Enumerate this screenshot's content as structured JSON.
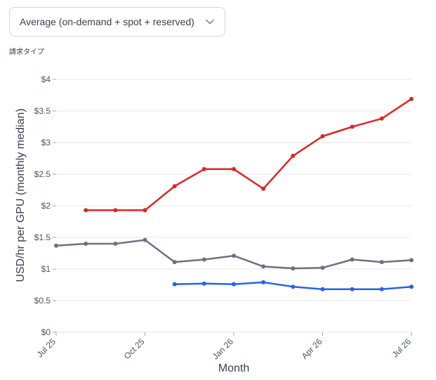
{
  "filter": {
    "selected_label": "Average (on-demand + spot + reserved)",
    "caption": "請求タイプ"
  },
  "chart_data": {
    "type": "line",
    "title": "",
    "xlabel": "Month",
    "ylabel": "USD/hr per GPU (monthly median)",
    "ylim": [
      0,
      4
    ],
    "yticks": [
      0,
      0.5,
      1,
      1.5,
      2,
      2.5,
      3,
      3.5,
      4
    ],
    "ytick_labels": [
      "$0",
      "$0.5",
      "$1",
      "$1.5",
      "$2",
      "$2.5",
      "$3",
      "$3.5",
      "$4"
    ],
    "x": [
      "2025-07",
      "2025-08",
      "2025-09",
      "2025-10",
      "2025-11",
      "2025-12",
      "2026-01",
      "2026-02",
      "2026-03",
      "2026-04",
      "2026-05",
      "2026-06",
      "2026-07"
    ],
    "xtick_labels": [
      "Jul 25",
      "Oct 25",
      "Jan 26",
      "Apr 26",
      "Jul 26"
    ],
    "xtick_months": [
      "2025-07",
      "2025-10",
      "2026-01",
      "2026-04",
      "2026-07"
    ],
    "grid": true,
    "series": [
      {
        "color": "#dc2626",
        "values": [
          null,
          1.93,
          1.93,
          1.93,
          2.31,
          2.58,
          2.58,
          2.27,
          2.79,
          3.1,
          3.25,
          3.38,
          3.69
        ]
      },
      {
        "color": "#6b7280",
        "values": [
          1.37,
          1.4,
          1.4,
          1.46,
          1.11,
          1.15,
          1.21,
          1.04,
          1.01,
          1.02,
          1.15,
          1.11,
          1.14
        ]
      },
      {
        "color": "#2563eb",
        "values": [
          null,
          null,
          null,
          null,
          0.76,
          0.77,
          0.76,
          0.79,
          0.72,
          0.68,
          0.68,
          0.68,
          0.72
        ]
      }
    ]
  }
}
